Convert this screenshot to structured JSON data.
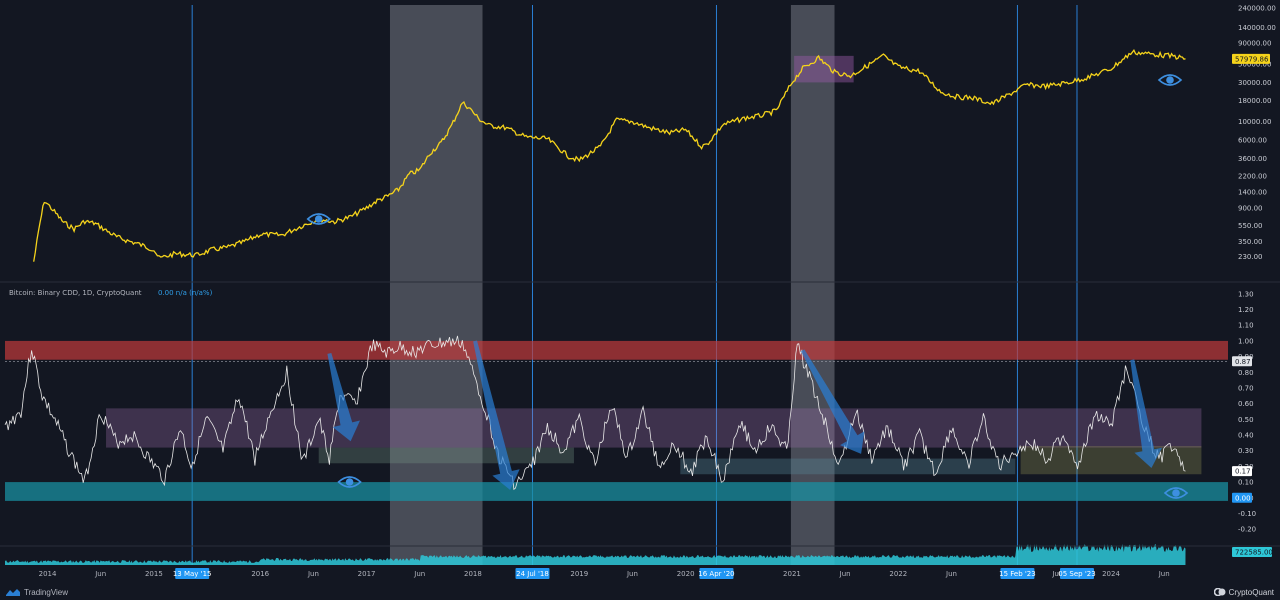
{
  "footer": {
    "left_brand": "TradingView",
    "right_brand": "CryptoQuant",
    "left_icon": "tradingview-logo-icon",
    "right_icon": "cryptoquant-logo-icon"
  },
  "chart_data": [
    {
      "type": "line",
      "title": "",
      "scale": "log",
      "color": "#f5d31b",
      "ylim": [
        150,
        240000
      ],
      "yticks": [
        "240000.00",
        "140000.00",
        "90000.00",
        "50000.00",
        "30000.00",
        "18000.00",
        "10000.00",
        "6000.00",
        "3600.00",
        "2200.00",
        "1400.00",
        "900.00",
        "550.00",
        "350.00",
        "230.00"
      ],
      "last_value_label": "57979.86",
      "series": [
        {
          "values_x": [
            2013.87,
            2013.93,
            2013.97,
            2014.05,
            2014.15,
            2014.25,
            2014.35,
            2014.45,
            2014.55,
            2014.65,
            2014.75,
            2014.85,
            2015.0,
            2015.05,
            2015.2,
            2015.4,
            2015.55,
            2015.7,
            2015.85,
            2016.0,
            2016.2,
            2016.4,
            2016.55,
            2016.7,
            2016.85,
            2017.0,
            2017.1,
            2017.2,
            2017.3,
            2017.4,
            2017.5,
            2017.6,
            2017.7,
            2017.8,
            2017.9,
            2017.96,
            2018.05,
            2018.15,
            2018.3,
            2018.5,
            2018.7,
            2018.9,
            2019.0,
            2019.2,
            2019.35,
            2019.5,
            2019.65,
            2019.85,
            2020.0,
            2020.15,
            2020.2,
            2020.35,
            2020.55,
            2020.7,
            2020.85,
            2021.0,
            2021.1,
            2021.25,
            2021.4,
            2021.55,
            2021.7,
            2021.86,
            2022.0,
            2022.2,
            2022.4,
            2022.55,
            2022.7,
            2022.88,
            2023.0,
            2023.2,
            2023.4,
            2023.6,
            2023.8,
            2024.0,
            2024.2,
            2024.4,
            2024.6,
            2024.7
          ],
          "values_y": [
            200,
            600,
            1100,
            850,
            600,
            500,
            620,
            580,
            480,
            400,
            360,
            330,
            280,
            220,
            250,
            240,
            280,
            300,
            350,
            430,
            420,
            550,
            660,
            610,
            700,
            900,
            1100,
            1250,
            1500,
            2300,
            2600,
            4200,
            5500,
            9000,
            17000,
            15000,
            11000,
            9000,
            8500,
            6500,
            6200,
            3800,
            3400,
            5000,
            10500,
            10000,
            8500,
            7300,
            8000,
            5000,
            5300,
            9200,
            11000,
            11800,
            13500,
            30000,
            44000,
            60000,
            40000,
            36000,
            47000,
            63000,
            46000,
            41000,
            23000,
            20000,
            19500,
            16500,
            20000,
            28000,
            27000,
            30000,
            35000,
            44000,
            70000,
            66000,
            62000,
            57979.86
          ]
        }
      ]
    },
    {
      "type": "line",
      "title": "Bitcoin: Binary CDD, 1D, CryptoQuant",
      "legend_value": "0.00  n/a (n/a%)",
      "color": "#e8e8e8",
      "ylim": [
        -0.25,
        1.35
      ],
      "yticks": [
        "1.30",
        "1.20",
        "1.10",
        "1.00",
        "0.90",
        "0.80",
        "0.70",
        "0.60",
        "0.50",
        "0.40",
        "0.30",
        "0.20",
        "0.10",
        "0.00",
        "-0.10",
        "-0.20"
      ],
      "current_level_label": "0.87",
      "last_value_label": "0.17",
      "zero_label": "0.00",
      "series": [
        {
          "values_x": [
            2013.6,
            2013.75,
            2013.85,
            2013.95,
            2014.1,
            2014.2,
            2014.35,
            2014.5,
            2014.65,
            2014.8,
            2014.95,
            2015.1,
            2015.25,
            2015.35,
            2015.5,
            2015.65,
            2015.8,
            2015.95,
            2016.1,
            2016.25,
            2016.4,
            2016.55,
            2016.65,
            2016.75,
            2016.9,
            2017.05,
            2017.2,
            2017.3,
            2017.45,
            2017.6,
            2017.75,
            2017.9,
            2018.1,
            2018.25,
            2018.4,
            2018.55,
            2018.7,
            2018.85,
            2019.0,
            2019.15,
            2019.3,
            2019.45,
            2019.6,
            2019.75,
            2019.9,
            2020.05,
            2020.2,
            2020.35,
            2020.5,
            2020.65,
            2020.8,
            2020.95,
            2021.05,
            2021.15,
            2021.3,
            2021.45,
            2021.6,
            2021.75,
            2021.9,
            2022.05,
            2022.2,
            2022.35,
            2022.5,
            2022.65,
            2022.8,
            2022.95,
            2023.1,
            2023.25,
            2023.4,
            2023.55,
            2023.7,
            2023.85,
            2024.0,
            2024.15,
            2024.3,
            2024.45,
            2024.6,
            2024.7
          ],
          "values_y": [
            0.45,
            0.55,
            0.96,
            0.65,
            0.45,
            0.3,
            0.1,
            0.55,
            0.35,
            0.4,
            0.25,
            0.12,
            0.45,
            0.2,
            0.5,
            0.3,
            0.65,
            0.25,
            0.55,
            0.8,
            0.22,
            0.5,
            0.25,
            0.65,
            0.6,
            0.97,
            0.92,
            0.96,
            0.93,
            0.97,
            0.99,
            0.99,
            0.6,
            0.25,
            0.08,
            0.2,
            0.45,
            0.3,
            0.5,
            0.2,
            0.6,
            0.25,
            0.55,
            0.2,
            0.35,
            0.15,
            0.4,
            0.1,
            0.5,
            0.3,
            0.45,
            0.3,
            0.97,
            0.8,
            0.5,
            0.2,
            0.55,
            0.25,
            0.45,
            0.2,
            0.4,
            0.15,
            0.45,
            0.2,
            0.5,
            0.2,
            0.3,
            0.35,
            0.25,
            0.4,
            0.2,
            0.55,
            0.45,
            0.85,
            0.45,
            0.25,
            0.35,
            0.17
          ]
        }
      ]
    },
    {
      "type": "area",
      "title": "",
      "color": "#2ec8d8",
      "last_value_label": "722585.00"
    }
  ],
  "x_axis": {
    "ticks": [
      {
        "year": 2014.0,
        "label": "2014",
        "bold": false
      },
      {
        "year": 2014.5,
        "label": "Jun",
        "bold": false
      },
      {
        "year": 2015.0,
        "label": "2015",
        "bold": false
      },
      {
        "year": 2016.0,
        "label": "2016",
        "bold": false
      },
      {
        "year": 2016.5,
        "label": "Jun",
        "bold": false
      },
      {
        "year": 2017.0,
        "label": "2017",
        "bold": false
      },
      {
        "year": 2017.5,
        "label": "Jun",
        "bold": false
      },
      {
        "year": 2018.0,
        "label": "2018",
        "bold": false
      },
      {
        "year": 2019.0,
        "label": "2019",
        "bold": false
      },
      {
        "year": 2019.5,
        "label": "Jun",
        "bold": false
      },
      {
        "year": 2020.0,
        "label": "2020",
        "bold": false
      },
      {
        "year": 2021.0,
        "label": "2021",
        "bold": false
      },
      {
        "year": 2021.5,
        "label": "Jun",
        "bold": false
      },
      {
        "year": 2022.0,
        "label": "2022",
        "bold": false
      },
      {
        "year": 2022.5,
        "label": "Jun",
        "bold": false
      },
      {
        "year": 2023.5,
        "label": "Jun",
        "bold": false
      },
      {
        "year": 2024.0,
        "label": "2024",
        "bold": false
      },
      {
        "year": 2024.5,
        "label": "Jun",
        "bold": false
      }
    ],
    "date_badges": [
      {
        "year": 2015.36,
        "label": "13 May '15"
      },
      {
        "year": 2018.56,
        "label": "24 Jul '18"
      },
      {
        "year": 2020.29,
        "label": "16 Apr '20"
      },
      {
        "year": 2023.12,
        "label": "15 Feb '23"
      },
      {
        "year": 2023.68,
        "label": "05 Sep '23"
      }
    ],
    "vertical_lines": [
      2015.36,
      2018.56,
      2020.29,
      2023.12,
      2023.68
    ],
    "shaded_periods": [
      [
        2017.22,
        2018.09
      ],
      [
        2020.99,
        2021.4
      ]
    ]
  },
  "annotations": {
    "eye_icons": [
      "eye-icon",
      "eye-icon",
      "eye-icon",
      "eye-icon"
    ],
    "arrow_icons": [
      "down-arrow-icon",
      "down-arrow-icon",
      "down-arrow-icon",
      "down-arrow-icon"
    ]
  },
  "colors": {
    "background": "#131722",
    "price_line": "#f5d31b",
    "cdd_line": "#e8e8e8",
    "red_zone": "#c23b3b",
    "teal_zone": "#1a8fa0",
    "purple_zone": "#9a6ea8",
    "accent_blue": "#2a7fd4",
    "badge_blue": "#2196f3"
  }
}
